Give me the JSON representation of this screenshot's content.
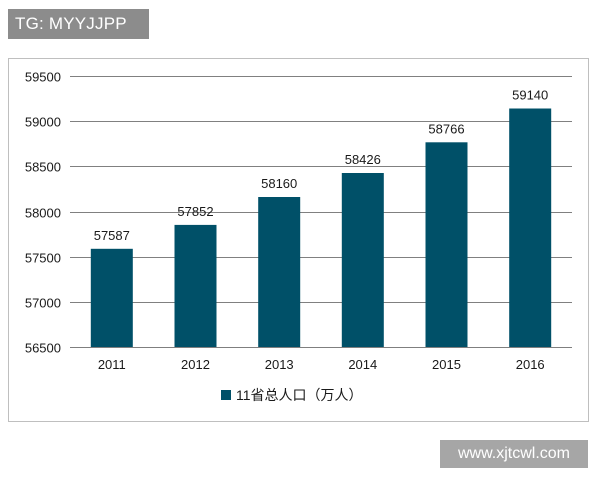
{
  "watermark_top": "TG: MYYJJPP",
  "watermark_bottom": "www.xjtcwl.com",
  "chart_data": {
    "type": "bar",
    "categories": [
      "2011",
      "2012",
      "2013",
      "2014",
      "2015",
      "2016"
    ],
    "series": [
      {
        "name": "11省总人口（万人）",
        "values": [
          57587,
          57852,
          58160,
          58426,
          58766,
          59140
        ],
        "color": "#005068"
      }
    ],
    "data_labels": [
      "57587",
      "57852",
      "58160",
      "58426",
      "58766",
      "59140"
    ],
    "ylim": [
      56500,
      59500
    ],
    "yticks": [
      56500,
      57000,
      57500,
      58000,
      58500,
      59000,
      59500
    ],
    "ytick_labels": [
      "56500",
      "57000",
      "57500",
      "58000",
      "58500",
      "59000",
      "59500"
    ],
    "grid": true,
    "legend": "bottom",
    "title": "",
    "xlabel": "",
    "ylabel": ""
  }
}
